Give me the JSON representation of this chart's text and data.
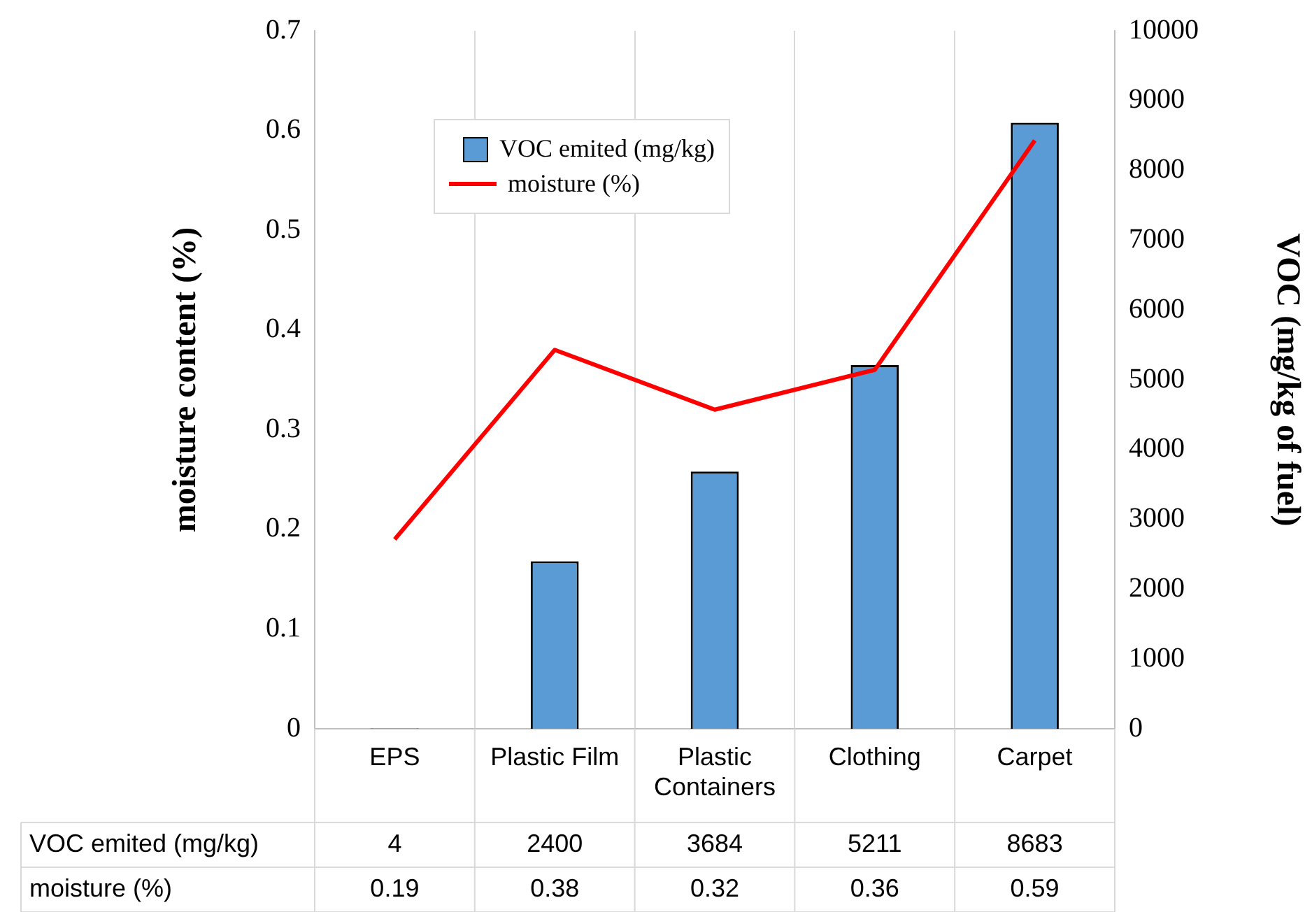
{
  "chart_data": {
    "type": "bar",
    "categories": [
      "EPS",
      "Plastic Film",
      "Plastic Containers",
      "Clothing",
      "Carpet"
    ],
    "series": [
      {
        "name": "VOC emited (mg/kg)",
        "axis": "y2",
        "color": "#5b9bd5",
        "values": [
          4,
          2400,
          3684,
          5211,
          8683
        ]
      },
      {
        "name": "moisture (%)",
        "type": "line",
        "axis": "y",
        "color": "#ff0000",
        "values": [
          0.19,
          0.38,
          0.32,
          0.36,
          0.59
        ]
      }
    ],
    "ylabel": "moisture content (%)",
    "y2label": "VOC (mg/kg of fuel)",
    "ylim": [
      0,
      0.7
    ],
    "yticks": [
      0,
      0.1,
      0.2,
      0.3,
      0.4,
      0.5,
      0.6,
      0.7
    ],
    "y2lim": [
      0,
      10000
    ],
    "y2ticks": [
      0,
      1000,
      2000,
      3000,
      4000,
      5000,
      6000,
      7000,
      8000,
      9000,
      10000
    ],
    "grid": "x",
    "legend": "top left",
    "marker": "none",
    "line_style": "solid",
    "data_labels": true
  }
}
